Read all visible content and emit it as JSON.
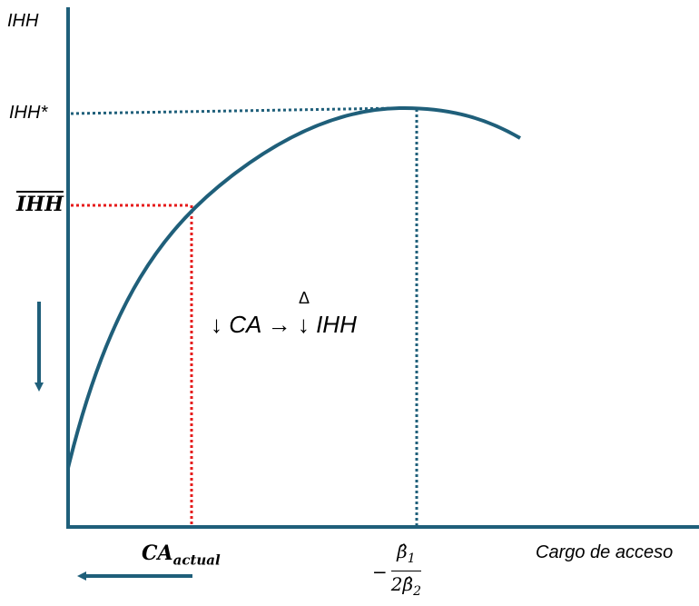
{
  "diagram": {
    "colors": {
      "axis": "#1f5f7a",
      "curve": "#1f5f7a",
      "red_guides": "#e61c1c",
      "teal_guides": "#1f5f7a",
      "arrows": "#1f5f7a"
    },
    "labels": {
      "y_axis": "IHH",
      "y_max": "IHH*",
      "y_hat": "IHH",
      "x_axis": "Cargo de acceso",
      "x_actual_base": "CA",
      "x_actual_sub": "actual",
      "annotation_left": "↓ CA",
      "annotation_arrow": "→",
      "annotation_delta": "Δ",
      "annotation_right": "↓ IHH",
      "vertex_minus": "−",
      "vertex_numerator": "β̂",
      "vertex_numerator_sub": "1",
      "vertex_denominator": "2β̂",
      "vertex_denominator_sub": "2"
    }
  }
}
